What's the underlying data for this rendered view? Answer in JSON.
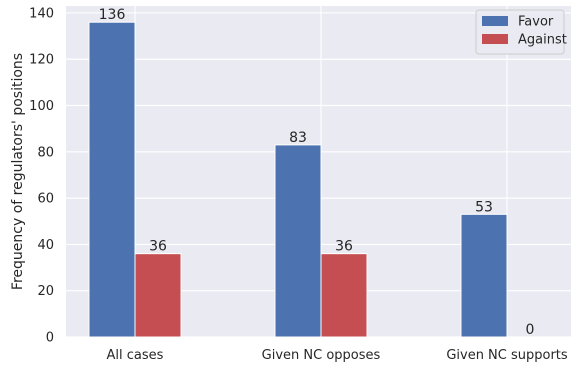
{
  "chart_data": {
    "type": "bar",
    "categories": [
      "All cases",
      "Given NC opposes",
      "Given NC supports"
    ],
    "series": [
      {
        "name": "Favor",
        "values": [
          136,
          83,
          53
        ],
        "color": "#4c72b0"
      },
      {
        "name": "Against",
        "values": [
          36,
          36,
          0
        ],
        "color": "#c44e52"
      }
    ],
    "xlabel": "",
    "ylabel": "Frequency of regulators' positions",
    "ylim": [
      0,
      143
    ],
    "yticks": [
      0,
      20,
      40,
      60,
      80,
      100,
      120,
      140
    ],
    "grid": true,
    "legend_position": "top-right",
    "background": "#eaeaf2",
    "grid_color": "#ffffff"
  }
}
